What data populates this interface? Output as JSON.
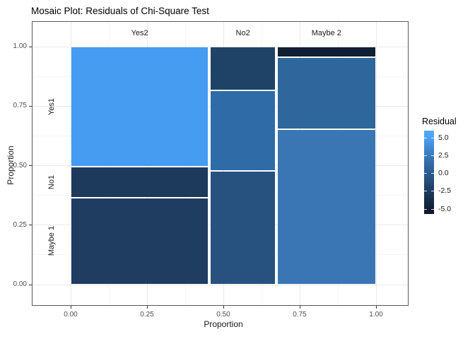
{
  "title": "Mosaic Plot: Residuals of Chi-Square Test",
  "chart_data": {
    "type": "mosaic",
    "title": "Mosaic Plot: Residuals of Chi-Square Test",
    "xlabel": "Proportion",
    "ylabel": "Proportion",
    "x_categories": [
      "Yes2",
      "No2",
      "Maybe 2"
    ],
    "y_categories": [
      "Yes1",
      "No1",
      "Maybe 1"
    ],
    "x_ticks": [
      {
        "value": 0.0,
        "label": "0.00"
      },
      {
        "value": 0.25,
        "label": "0.25"
      },
      {
        "value": 0.5,
        "label": "0.50"
      },
      {
        "value": 0.75,
        "label": "0.75"
      },
      {
        "value": 1.0,
        "label": "1.00"
      }
    ],
    "y_ticks": [
      {
        "value": 0.0,
        "label": "0.00"
      },
      {
        "value": 0.25,
        "label": "0.25"
      },
      {
        "value": 0.5,
        "label": "0.50"
      },
      {
        "value": 0.75,
        "label": "0.75"
      },
      {
        "value": 1.0,
        "label": "1.00"
      }
    ],
    "minor_tick_values": [
      0.125,
      0.375,
      0.625,
      0.875
    ],
    "axis_range": [
      0,
      1
    ],
    "grid": true,
    "columns": [
      {
        "label": "Yes2",
        "x0": 0.0,
        "x1": 0.452,
        "cells": [
          {
            "row": "Yes1",
            "y0": 0.496,
            "y1": 1.0,
            "color": "#459CF1",
            "residual_est": 4.9
          },
          {
            "row": "No1",
            "y0": 0.366,
            "y1": 0.496,
            "color": "#1D3A5C",
            "residual_est": -2.7
          },
          {
            "row": "Maybe 1",
            "y0": 0.0,
            "y1": 0.366,
            "color": "#1E3D61",
            "residual_est": -2.5
          }
        ]
      },
      {
        "label": "No2",
        "x0": 0.457,
        "x1": 0.671,
        "cells": [
          {
            "row": "Yes1",
            "y0": 0.815,
            "y1": 1.0,
            "color": "#1F4366",
            "residual_est": -2.3
          },
          {
            "row": "No1",
            "y0": 0.478,
            "y1": 0.815,
            "color": "#2F6BA6",
            "residual_est": 1.1
          },
          {
            "row": "Maybe 1",
            "y0": 0.0,
            "y1": 0.478,
            "color": "#27527F",
            "residual_est": -1.1
          }
        ]
      },
      {
        "label": "Maybe 2",
        "x0": 0.675,
        "x1": 1.0,
        "cells": [
          {
            "row": "Yes1",
            "y0": 0.956,
            "y1": 1.0,
            "color": "#111F33",
            "residual_est": -4.8
          },
          {
            "row": "No1",
            "y0": 0.652,
            "y1": 0.956,
            "color": "#2F669C",
            "residual_est": 0.7
          },
          {
            "row": "Maybe 1",
            "y0": 0.0,
            "y1": 0.652,
            "color": "#3A76B4",
            "residual_est": 1.9
          }
        ]
      }
    ],
    "legend": {
      "title": "Residual",
      "position": "right",
      "ticks": [
        {
          "value": 5.0,
          "label": "5.0"
        },
        {
          "value": 2.5,
          "label": "2.5"
        },
        {
          "value": 0.0,
          "label": "0.0"
        },
        {
          "value": -2.5,
          "label": "-2.5"
        },
        {
          "value": -5.0,
          "label": "-5.0"
        }
      ],
      "gradient_stops": [
        {
          "value": 5.0,
          "color": "#4BA1F3"
        },
        {
          "value": 2.5,
          "color": "#3878B8"
        },
        {
          "value": 0.0,
          "color": "#2A5B8D"
        },
        {
          "value": -2.5,
          "color": "#1D3C5F"
        },
        {
          "value": -5.0,
          "color": "#0E1D31"
        }
      ]
    },
    "colors": {
      "panel_border": "#595959",
      "grid_major": "#E9E9E9",
      "grid_minor": "#F5F5F5",
      "tick_mark": "#333333",
      "tick_label": "#4D4D4D",
      "cell_gap": "#FFFFFF"
    }
  }
}
